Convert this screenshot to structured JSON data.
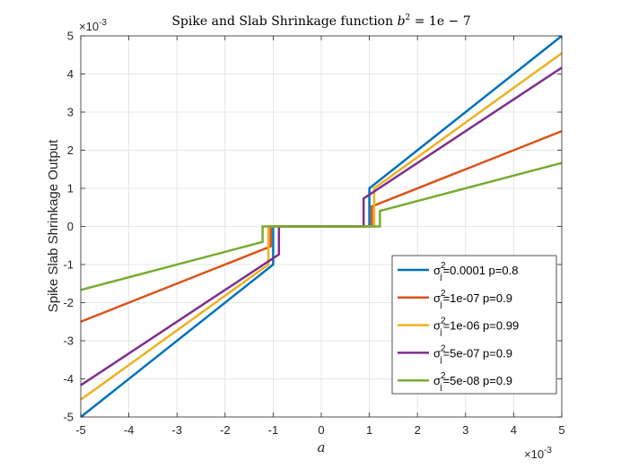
{
  "chart_data": {
    "type": "line",
    "title": "Spike and Slab Shrinkage function b² = 1e − 7",
    "title_parts": {
      "prefix": "Spike and Slab Shrinkage function ",
      "b": "b",
      "sup": "2",
      "rest": " = 1e − 7"
    },
    "xlabel": "a",
    "ylabel": "Spike Slab Shrinkage Output",
    "x_exponent_label": "×10",
    "x_exponent": "-3",
    "y_exponent_label": "×10",
    "y_exponent": "-3",
    "xlim": [
      -5,
      5
    ],
    "ylim": [
      -5,
      5
    ],
    "xticks": [
      -5,
      -4,
      -3,
      -2,
      -1,
      0,
      1,
      2,
      3,
      4,
      5
    ],
    "yticks": [
      -5,
      -4,
      -3,
      -2,
      -1,
      0,
      1,
      2,
      3,
      4,
      5
    ],
    "grid": true,
    "legend_position": "bottom-right",
    "units_note": "x and y values in units of 1e-3",
    "series": [
      {
        "name": "σj²=0.0001 p=0.8",
        "legend": {
          "sigma": "σ",
          "sup": "2",
          "sub": "j",
          "rest": "=0.0001 p=0.8"
        },
        "color": "#0072BD",
        "x": [
          -5,
          -1,
          -1,
          1,
          1,
          5
        ],
        "y": [
          -5,
          -1,
          0,
          0,
          1,
          5
        ]
      },
      {
        "name": "σj²=1e-07 p=0.9",
        "legend": {
          "sigma": "σ",
          "sup": "2",
          "sub": "j",
          "rest": "=1e-07 p=0.9"
        },
        "color": "#D95319",
        "x": [
          -5,
          -1.05,
          -1.05,
          1.05,
          1.05,
          5
        ],
        "y": [
          -2.5,
          -0.525,
          0,
          0,
          0.525,
          2.5
        ]
      },
      {
        "name": "σj²=1e-06 p=0.99",
        "legend": {
          "sigma": "σ",
          "sup": "2",
          "sub": "j",
          "rest": "=1e-06 p=0.99"
        },
        "color": "#EDB120",
        "x": [
          -5,
          -1.1,
          -1.1,
          1.1,
          1.1,
          5
        ],
        "y": [
          -4.545,
          -1.0,
          0,
          0,
          1.0,
          4.545
        ]
      },
      {
        "name": "σj²=5e-07 p=0.9",
        "legend": {
          "sigma": "σ",
          "sup": "2",
          "sub": "j",
          "rest": "=5e-07 p=0.9"
        },
        "color": "#7E2F8E",
        "x": [
          -5,
          -0.88,
          -0.88,
          0.88,
          0.88,
          5
        ],
        "y": [
          -4.167,
          -0.733,
          0,
          0,
          0.733,
          4.167
        ]
      },
      {
        "name": "σj²=5e-08 p=0.9",
        "legend": {
          "sigma": "σ",
          "sup": "2",
          "sub": "j",
          "rest": "=5e-08 p=0.9"
        },
        "color": "#77AC30",
        "x": [
          -5,
          -1.22,
          -1.22,
          1.22,
          1.22,
          5
        ],
        "y": [
          -1.667,
          -0.407,
          0,
          0,
          0.407,
          1.667
        ]
      }
    ]
  }
}
